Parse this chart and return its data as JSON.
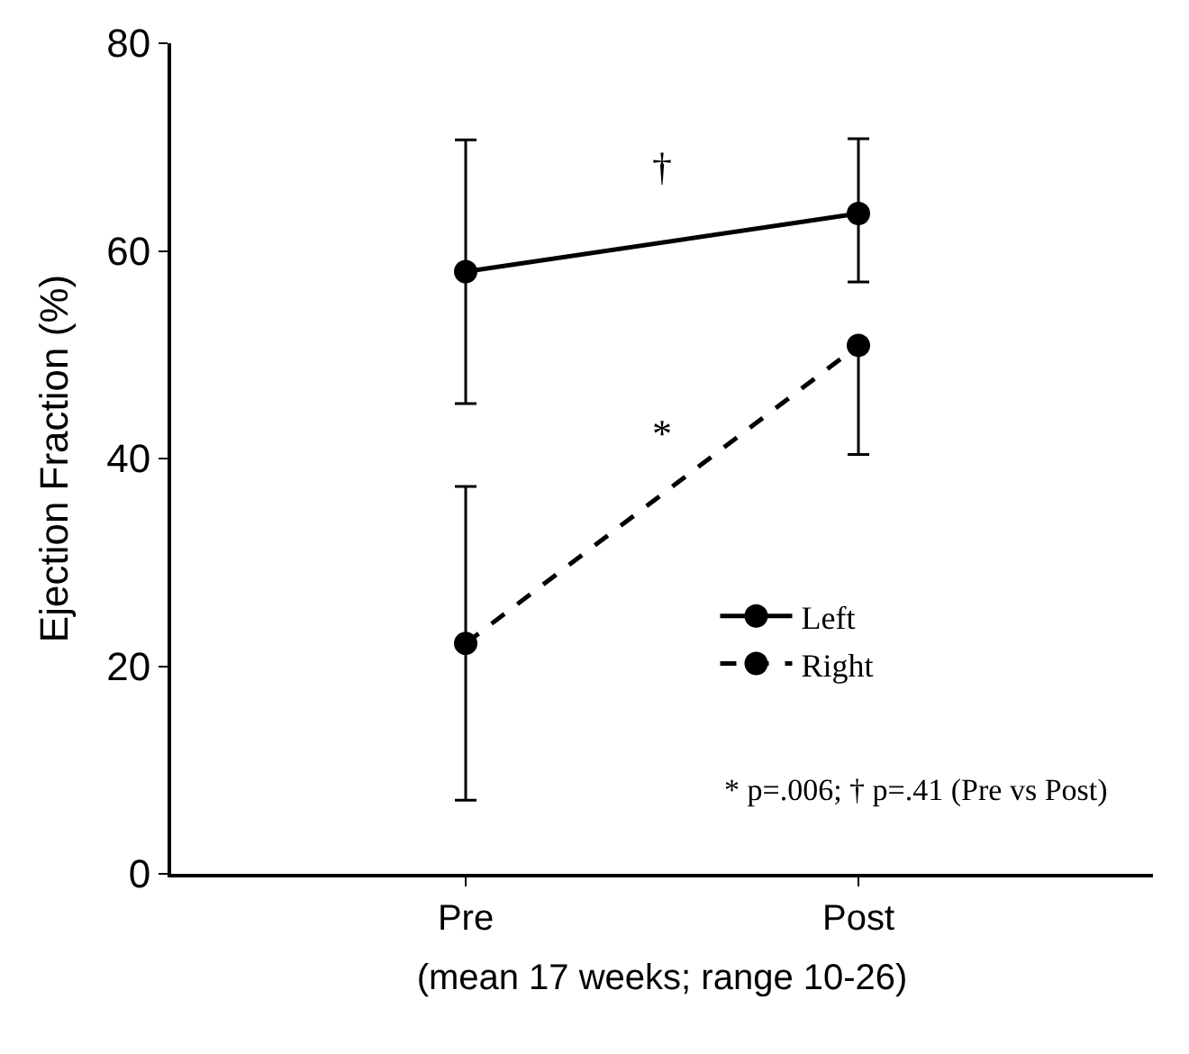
{
  "chart_data": {
    "type": "line",
    "ylabel": "Ejection Fraction (%)",
    "xlabel": "(mean 17 weeks; range 10-26)",
    "categories": [
      "Pre",
      "Post"
    ],
    "series": [
      {
        "name": "Left",
        "color": "#000000",
        "values": [
          58.0,
          63.6
        ],
        "errors": [
          12.7,
          [
            57.0,
            70.8
          ]
        ],
        "line_style": "solid"
      },
      {
        "name": "Right",
        "color": "#000000",
        "values": [
          22.2,
          50.9
        ],
        "errors": [
          15.1,
          [
            40.4,
            50.9
          ]
        ],
        "line_style": "dashed"
      }
    ],
    "annotations": [
      "†",
      "*",
      "* p=.006; † p=.41 (Pre vs Post)"
    ],
    "ylim": [
      0,
      80
    ],
    "yticks": [
      0,
      20,
      40,
      60,
      80
    ],
    "marker": "circle",
    "legend": "bottom right"
  }
}
